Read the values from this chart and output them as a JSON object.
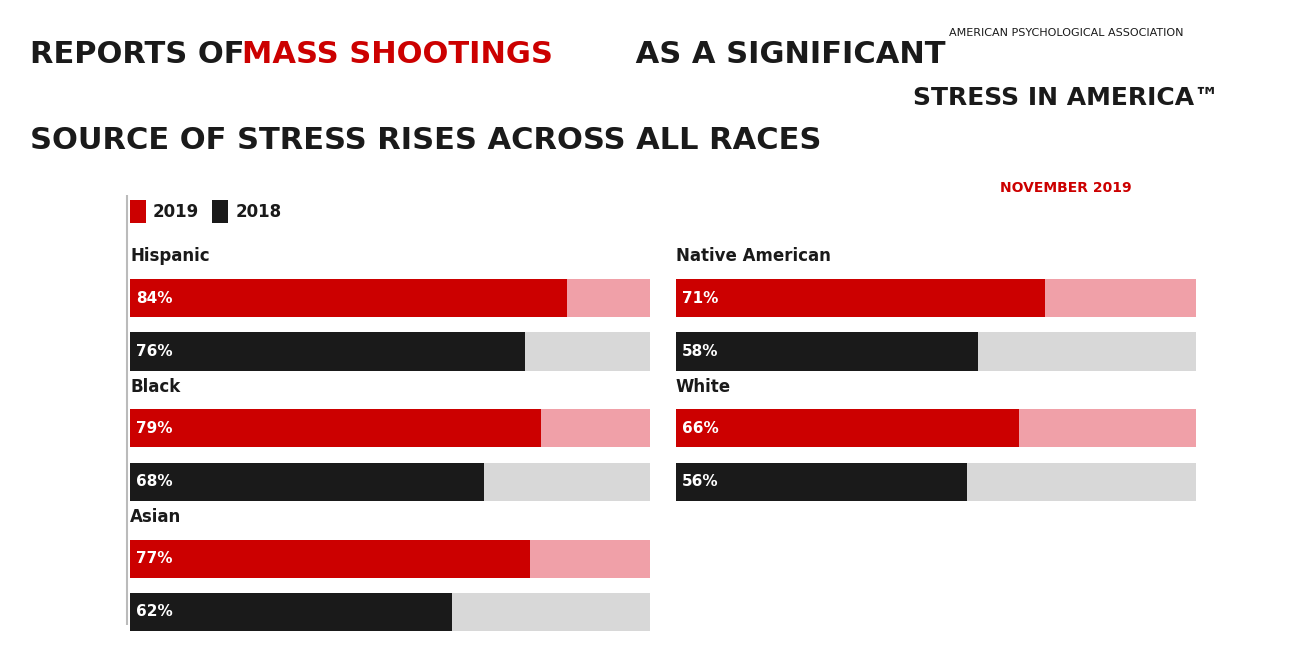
{
  "apa_line1": "AMERICAN PSYCHOLOGICAL ASSOCIATION",
  "apa_line2": "STRESS IN AMERICA™",
  "apa_line3": "NOVEMBER 2019",
  "bar_red": "#cc0000",
  "bar_black": "#1a1a1a",
  "bar_pink": "#f0a0a8",
  "bar_gray": "#d8d8d8",
  "max_val": 100,
  "groups": [
    {
      "label": "Hispanic",
      "val2019": 84,
      "val2018": 76,
      "col": 0,
      "row": 0
    },
    {
      "label": "Native American",
      "val2019": 71,
      "val2018": 58,
      "col": 1,
      "row": 0
    },
    {
      "label": "Black",
      "val2019": 79,
      "val2018": 68,
      "col": 0,
      "row": 1
    },
    {
      "label": "White",
      "val2019": 66,
      "val2018": 56,
      "col": 1,
      "row": 1
    },
    {
      "label": "Asian",
      "val2019": 77,
      "val2018": 62,
      "col": 0,
      "row": 2
    }
  ],
  "background_color": "#ffffff",
  "title_black": "#1a1a1a",
  "title_red": "#cc0000",
  "title_fontsize": 22,
  "label_fontsize": 12,
  "pct_fontsize": 11
}
